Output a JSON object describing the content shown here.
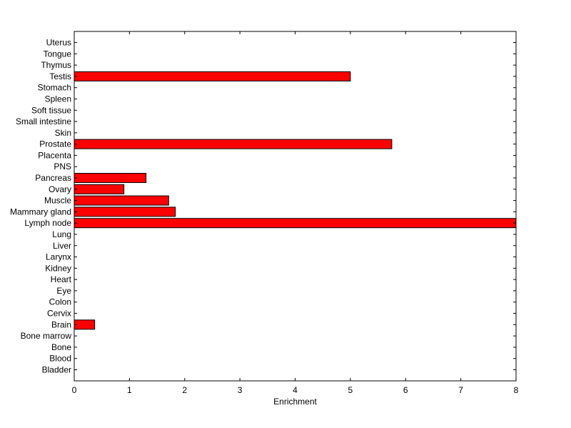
{
  "chart_data": {
    "type": "bar",
    "orientation": "horizontal",
    "xlabel": "Enrichment",
    "ylabel": "",
    "title": "",
    "xlim": [
      0,
      8
    ],
    "xticks": [
      "0",
      "1",
      "2",
      "3",
      "4",
      "5",
      "6",
      "7",
      "8"
    ],
    "grid": false,
    "legend": "none",
    "bar_color": "#ff0000",
    "bar_edge_color": "#000000",
    "categories": [
      "Bladder",
      "Blood",
      "Bone",
      "Bone marrow",
      "Brain",
      "Cervix",
      "Colon",
      "Eye",
      "Heart",
      "Kidney",
      "Larynx",
      "Liver",
      "Lung",
      "Lymph node",
      "Mammary gland",
      "Muscle",
      "Ovary",
      "Pancreas",
      "PNS",
      "Placenta",
      "Prostate",
      "Skin",
      "Small intestine",
      "Soft tissue",
      "Spleen",
      "Stomach",
      "Testis",
      "Thymus",
      "Tongue",
      "Uterus"
    ],
    "values": [
      0,
      0,
      0,
      0,
      0.37,
      0,
      0,
      0,
      0,
      0,
      0,
      0,
      0,
      8.0,
      1.83,
      1.71,
      0.9,
      1.3,
      0,
      0,
      5.75,
      0,
      0,
      0,
      0,
      0,
      5.0,
      0,
      0,
      0
    ]
  }
}
